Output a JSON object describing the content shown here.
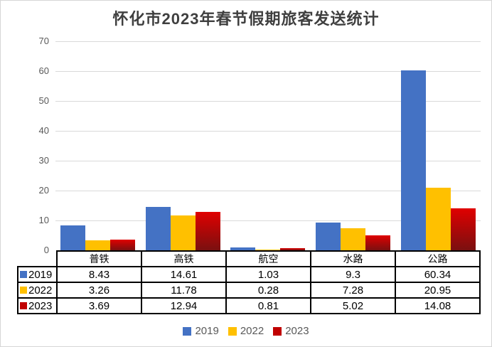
{
  "title": "怀化市2023年春节假期旅客发送统计",
  "colors": {
    "series_2019": "#4472C4",
    "series_2022": "#FFC000",
    "series_2023": "#C00000",
    "series_2023_gradient_top": "#E00000",
    "series_2023_gradient_bottom": "#7A1010",
    "gridline": "#D9D9D9",
    "axis_text": "#595959",
    "table_border": "#000000"
  },
  "chart_data": {
    "type": "bar",
    "title": "怀化市2023年春节假期旅客发送统计",
    "categories": [
      "普铁",
      "高铁",
      "航空",
      "水路",
      "公路"
    ],
    "series": [
      {
        "name": "2019",
        "color": "#4472C4",
        "values": [
          8.43,
          14.61,
          1.03,
          9.3,
          60.34
        ]
      },
      {
        "name": "2022",
        "color": "#FFC000",
        "values": [
          3.26,
          11.78,
          0.28,
          7.28,
          20.95
        ]
      },
      {
        "name": "2023",
        "color": "#C00000",
        "gradient": [
          "#E00000",
          "#7A1010"
        ],
        "values": [
          3.69,
          12.94,
          0.81,
          5.02,
          14.08
        ]
      }
    ],
    "xlabel": "",
    "ylabel": "",
    "ylim": [
      0,
      70
    ],
    "yticks": [
      0,
      10,
      20,
      30,
      40,
      50,
      60,
      70
    ],
    "grid": true,
    "legend_position": "bottom",
    "legend_labels": [
      "2019",
      "2022",
      "2023"
    ],
    "data_table_shown": true
  }
}
